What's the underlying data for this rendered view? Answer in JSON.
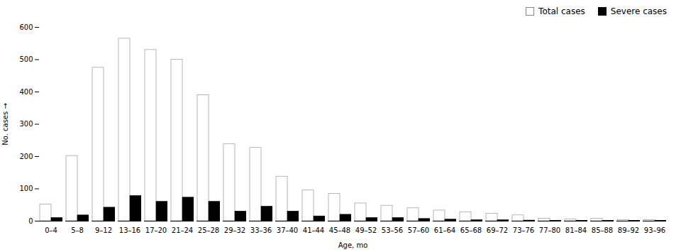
{
  "chart_data": {
    "type": "bar",
    "categories": [
      "0–4",
      "5–8",
      "9–12",
      "13–16",
      "17–20",
      "21–24",
      "25–28",
      "29–32",
      "33–36",
      "37–40",
      "41–44",
      "45–48",
      "49–52",
      "53–56",
      "57–60",
      "61–64",
      "65–68",
      "69–72",
      "73–76",
      "77–80",
      "81–84",
      "85–88",
      "89–92",
      "93–96"
    ],
    "series": [
      {
        "name": "Total cases",
        "color": "#ffffff",
        "values": [
          52,
          202,
          475,
          565,
          530,
          500,
          390,
          238,
          227,
          138,
          95,
          85,
          55,
          48,
          40,
          33,
          28,
          23,
          18,
          8,
          5,
          8,
          3,
          3
        ]
      },
      {
        "name": "Severe cases",
        "color": "#000000",
        "values": [
          10,
          18,
          42,
          78,
          60,
          73,
          60,
          30,
          45,
          30,
          15,
          20,
          10,
          10,
          7,
          5,
          3,
          3,
          2,
          1,
          1,
          1,
          1,
          1
        ]
      }
    ],
    "xlabel": "Age, mo",
    "ylabel": "No. cases",
    "ylim": [
      0,
      600
    ],
    "yticks": [
      0,
      100,
      200,
      300,
      400,
      500,
      600
    ],
    "grid": false,
    "legend": "upper right"
  }
}
